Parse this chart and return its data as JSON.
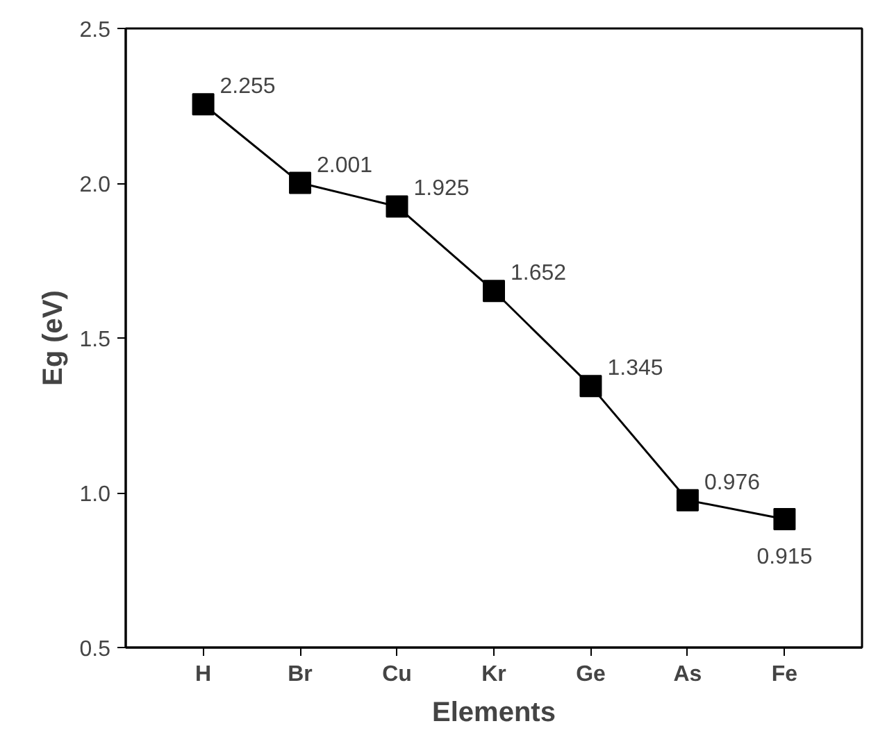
{
  "chart_data": {
    "type": "line",
    "xlabel": "Elements",
    "ylabel": "Eg (eV)",
    "categories": [
      "H",
      "Br",
      "Cu",
      "Kr",
      "Ge",
      "As",
      "Fe"
    ],
    "series": [
      {
        "color": "#000000",
        "values": [
          2.255,
          2.001,
          1.925,
          1.652,
          1.345,
          0.976,
          0.915
        ]
      }
    ],
    "data_labels": true,
    "ylim": [
      0.5,
      2.5
    ],
    "yticks": [
      0.5,
      {
        "value": 1,
        "label": "1.0"
      },
      1.5,
      {
        "value": 2,
        "label": "2.0"
      },
      2.5
    ],
    "marker": "square",
    "line_style": "solid"
  }
}
